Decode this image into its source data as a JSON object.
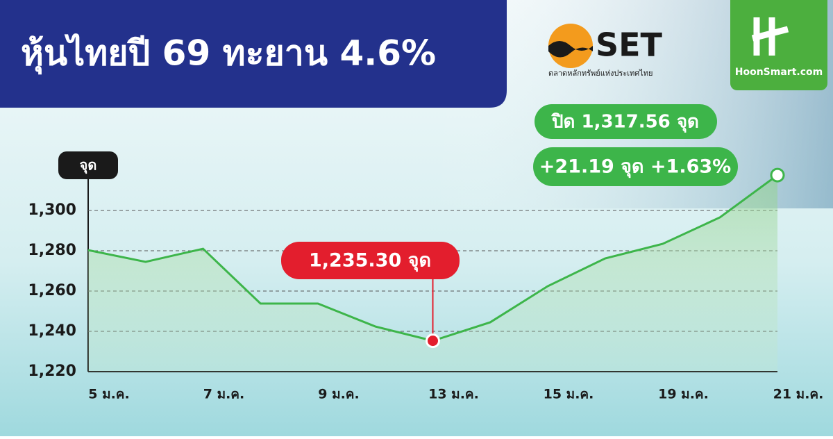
{
  "header": {
    "title": "หุ้นไทยปี 69 ทะยาน 4.6%",
    "logo_set": "SET",
    "logo_set_caption": "ตลาดหลักทรัพย์แห่งประเทศไทย",
    "logo_site": "HoonSmart.com"
  },
  "chart_data": {
    "type": "line",
    "y_label": "จุด",
    "categories": [
      "5 ม.ค.",
      null,
      "7 ม.ค.",
      null,
      "9 ม.ค.",
      null,
      "13 ม.ค.",
      null,
      "15 ม.ค.",
      null,
      "19 ม.ค.",
      null,
      "21 ม.ค."
    ],
    "values": [
      1280.3,
      1274.5,
      1281,
      1253.8,
      1253.8,
      1242.4,
      1235.3,
      1244.5,
      1262.4,
      1276.2,
      1283.4,
      1296.6,
      1317.56
    ],
    "value_labels": [
      null,
      null,
      null,
      null,
      null,
      null,
      "1,235.30 จุด",
      null,
      null,
      null,
      null,
      null,
      "ปิด 1,317.56 จุด"
    ],
    "annotation": "+21.19 จุด +1.63%",
    "color": "#3db54a",
    "low_color": "#e31e2d",
    "ylim": [
      1220,
      1320
    ],
    "yticks": [
      {
        "value": 1220,
        "label": "1,220"
      },
      {
        "value": 1240,
        "label": "1,240"
      },
      {
        "value": 1260,
        "label": "1,260"
      },
      {
        "value": 1280,
        "label": "1,280"
      },
      {
        "value": 1300,
        "label": "1,300"
      }
    ],
    "grid": true
  }
}
